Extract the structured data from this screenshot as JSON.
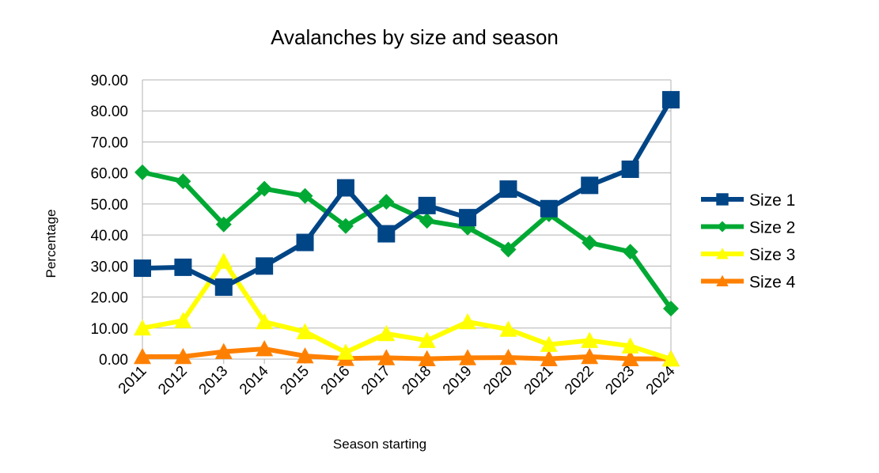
{
  "chart_data": {
    "type": "line",
    "title": "Avalanches by size and season",
    "xlabel": "Season starting",
    "ylabel": "Percentage",
    "ylim": [
      0,
      90
    ],
    "ytick_step": 10,
    "yticks": [
      "0.00",
      "10.00",
      "20.00",
      "30.00",
      "40.00",
      "50.00",
      "60.00",
      "70.00",
      "80.00",
      "90.00"
    ],
    "grid": true,
    "legend_position": "right",
    "categories": [
      "2011",
      "2012",
      "2013",
      "2014",
      "2015",
      "2016",
      "2017",
      "2018",
      "2019",
      "2020",
      "2021",
      "2022",
      "2023",
      "2024"
    ],
    "series": [
      {
        "name": "Size 1",
        "color": "#004586",
        "marker": "square",
        "values": [
          29.3,
          29.6,
          23.2,
          30.0,
          37.6,
          55.2,
          40.4,
          49.5,
          45.6,
          54.8,
          48.5,
          56.0,
          61.2,
          83.6
        ]
      },
      {
        "name": "Size 2",
        "color": "#00a933",
        "marker": "diamond",
        "values": [
          60.2,
          57.3,
          43.4,
          54.9,
          52.6,
          42.9,
          50.7,
          44.6,
          42.4,
          35.3,
          46.7,
          37.5,
          34.6,
          16.3
        ]
      },
      {
        "name": "Size 3",
        "color": "#ffff00",
        "marker": "triangle",
        "values": [
          10.0,
          12.4,
          31.5,
          12.0,
          8.8,
          2.2,
          8.2,
          6.0,
          12.0,
          9.6,
          4.7,
          6.0,
          4.2,
          0.0
        ]
      },
      {
        "name": "Size 4",
        "color": "#ff8000",
        "marker": "triangle",
        "values": [
          0.8,
          0.8,
          2.4,
          3.3,
          1.0,
          0.2,
          0.4,
          0.1,
          0.4,
          0.5,
          0.1,
          0.8,
          0.1,
          0.1
        ]
      }
    ]
  }
}
